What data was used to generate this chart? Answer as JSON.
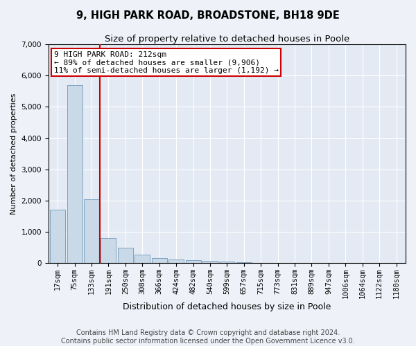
{
  "title": "9, HIGH PARK ROAD, BROADSTONE, BH18 9DE",
  "subtitle": "Size of property relative to detached houses in Poole",
  "xlabel": "Distribution of detached houses by size in Poole",
  "ylabel": "Number of detached properties",
  "categories": [
    "17sqm",
    "75sqm",
    "133sqm",
    "191sqm",
    "250sqm",
    "308sqm",
    "366sqm",
    "424sqm",
    "482sqm",
    "540sqm",
    "599sqm",
    "657sqm",
    "715sqm",
    "773sqm",
    "831sqm",
    "889sqm",
    "947sqm",
    "1006sqm",
    "1064sqm",
    "1122sqm",
    "1180sqm"
  ],
  "values": [
    1700,
    5700,
    2050,
    800,
    480,
    260,
    160,
    120,
    80,
    60,
    40,
    20,
    10,
    5,
    2,
    2,
    1,
    1,
    1,
    1,
    0
  ],
  "bar_color": "#c9d9e8",
  "bar_edge_color": "#5a8ab0",
  "vline_color": "#cc0000",
  "ylim": [
    0,
    7000
  ],
  "yticks": [
    0,
    1000,
    2000,
    3000,
    4000,
    5000,
    6000,
    7000
  ],
  "annotation_line1": "9 HIGH PARK ROAD: 212sqm",
  "annotation_line2": "← 89% of detached houses are smaller (9,906)",
  "annotation_line3": "11% of semi-detached houses are larger (1,192) →",
  "annotation_box_color": "#cc0000",
  "footer_line1": "Contains HM Land Registry data © Crown copyright and database right 2024.",
  "footer_line2": "Contains public sector information licensed under the Open Government Licence v3.0.",
  "bg_color": "#eef2f8",
  "plot_bg_color": "#e4eaf4",
  "grid_color": "#ffffff",
  "title_fontsize": 10.5,
  "subtitle_fontsize": 9.5,
  "xlabel_fontsize": 9,
  "ylabel_fontsize": 8,
  "tick_fontsize": 7.5,
  "annotation_fontsize": 8,
  "footer_fontsize": 7
}
